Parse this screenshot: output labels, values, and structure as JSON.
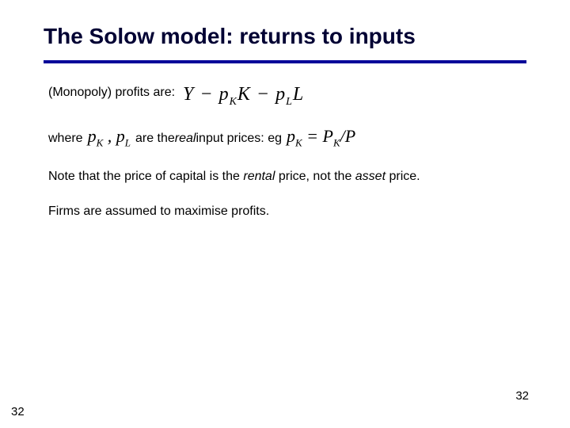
{
  "title": "The Solow model: returns to inputs",
  "line1": "(Monopoly) profits are:",
  "formula": {
    "Y": "Y",
    "minus1": " − ",
    "pK": "p",
    "pKsub": "K",
    "K": "K",
    "minus2": " − ",
    "pL": "p",
    "pLsub": "L",
    "L": "L"
  },
  "line2": {
    "where": "where",
    "pK": "p",
    "pKsub": "K",
    "comma": " , ",
    "pL": "p",
    "pLsub": "L",
    "mid1": " are the ",
    "real": "real",
    "mid2": " input prices: eg ",
    "eq_pK": "p",
    "eq_pKsub": "K",
    "eq_eq": " = ",
    "eq_PK": "P",
    "eq_PKsub": "K",
    "eq_slash": "/",
    "eq_P": "P"
  },
  "line3": {
    "a": "Note that the price of capital is the ",
    "rental": "rental",
    "b": " price, not the ",
    "asset": "asset",
    "c": " price."
  },
  "line4": "Firms are assumed to maximise profits.",
  "page": "32",
  "colors": {
    "title": "#000033",
    "rule": "#000099",
    "bg": "#ffffff"
  }
}
